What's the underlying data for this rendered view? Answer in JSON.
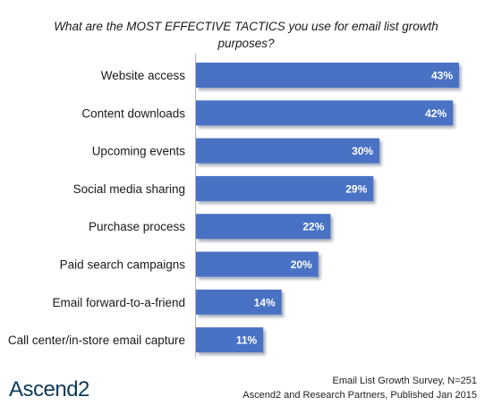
{
  "chart_data": {
    "type": "bar",
    "orientation": "horizontal",
    "title": "What are the MOST EFFECTIVE TACTICS you use for email list growth purposes?",
    "categories": [
      "Website access",
      "Content downloads",
      "Upcoming events",
      "Social media sharing",
      "Purchase process",
      "Paid search campaigns",
      "Email forward-to-a-friend",
      "Call center/in-store email capture"
    ],
    "values": [
      43,
      42,
      30,
      29,
      22,
      20,
      14,
      11
    ],
    "value_labels": [
      "43%",
      "42%",
      "30%",
      "29%",
      "22%",
      "20%",
      "14%",
      "11%"
    ],
    "unit": "%",
    "xlim": [
      0,
      43
    ],
    "grid": false,
    "legend": "none",
    "bar_color": "#4a72c4",
    "bar_shadow_color": "#aab2bf",
    "value_label_color": "#ffffff"
  },
  "brand": {
    "logo_text": "Ascend2",
    "color": "#0e3a5a"
  },
  "source": {
    "line1": "Email List Growth Survey, N=251",
    "line2": "Ascend2 and Research Partners, Published Jan 2015"
  }
}
